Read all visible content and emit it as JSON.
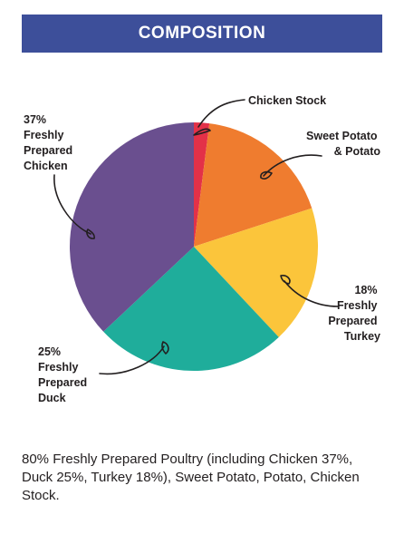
{
  "header": {
    "title": "COMPOSITION"
  },
  "chart_data": {
    "type": "pie",
    "title": "COMPOSITION",
    "slices": [
      {
        "label": "Chicken Stock",
        "value": 2,
        "color": "#e33148"
      },
      {
        "label": "Sweet Potato & Potato",
        "value": 18,
        "color": "#ef7c2f"
      },
      {
        "label": "18% Freshly Prepared Turkey",
        "value": 18,
        "color": "#fbc53b"
      },
      {
        "label": "25% Freshly Prepared Duck",
        "value": 25,
        "color": "#1fad9b"
      },
      {
        "label": "37% Freshly Prepared Chicken",
        "value": 37,
        "color": "#6a4f8f"
      }
    ],
    "labels": {
      "stock": [
        "Chicken Stock"
      ],
      "potato": [
        "Sweet Potato",
        "& Potato"
      ],
      "turkey": [
        "18%",
        "Freshly",
        "Prepared",
        "Turkey"
      ],
      "duck": [
        "25%",
        "Freshly",
        "Prepared",
        "Duck"
      ],
      "chicken": [
        "37%",
        "Freshly",
        "Prepared",
        "Chicken"
      ]
    }
  },
  "description": "80% Freshly Prepared Poultry (including Chicken 37%, Duck 25%, Turkey 18%), Sweet Potato, Potato, Chicken Stock."
}
